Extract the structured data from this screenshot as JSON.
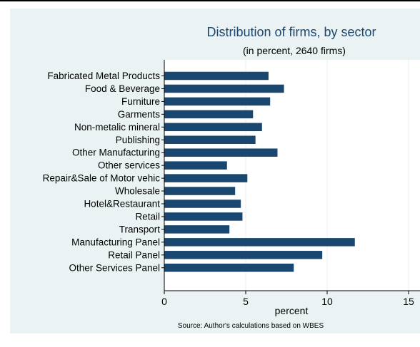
{
  "chart_data": {
    "type": "bar",
    "orientation": "horizontal",
    "title": "Distribution of firms, by sector",
    "subtitle": "(in percent, 2640 firms)",
    "xlabel": "percent",
    "note": "Source: Author's calculations based on WBES",
    "xlim": [
      0,
      15
    ],
    "xticks": [
      0,
      5,
      10,
      15
    ],
    "grid": true,
    "categories": [
      "Fabricated Metal Products",
      "Food & Beverage",
      "Furniture",
      "Garments",
      "Non-metalic mineral",
      "Publishing",
      "Other Manufacturing",
      "Other services",
      "Repair&Sale of Motor vehic",
      "Wholesale",
      "Hotel&Restaurant",
      "Retail",
      "Transport",
      "Manufacturing Panel",
      "Retail Panel",
      "Other Services Panel"
    ],
    "values": [
      6.4,
      7.35,
      6.5,
      5.45,
      6.0,
      5.6,
      6.95,
      3.85,
      5.1,
      4.35,
      4.7,
      4.8,
      4.0,
      11.7,
      9.7,
      7.95
    ],
    "colors": {
      "bar": "#1a476f",
      "outer_bg": "#eaf2f3",
      "plot_bg": "#ffffff",
      "grid": "#eaf2f3",
      "title": "#1a476f",
      "text": "#000000"
    }
  }
}
